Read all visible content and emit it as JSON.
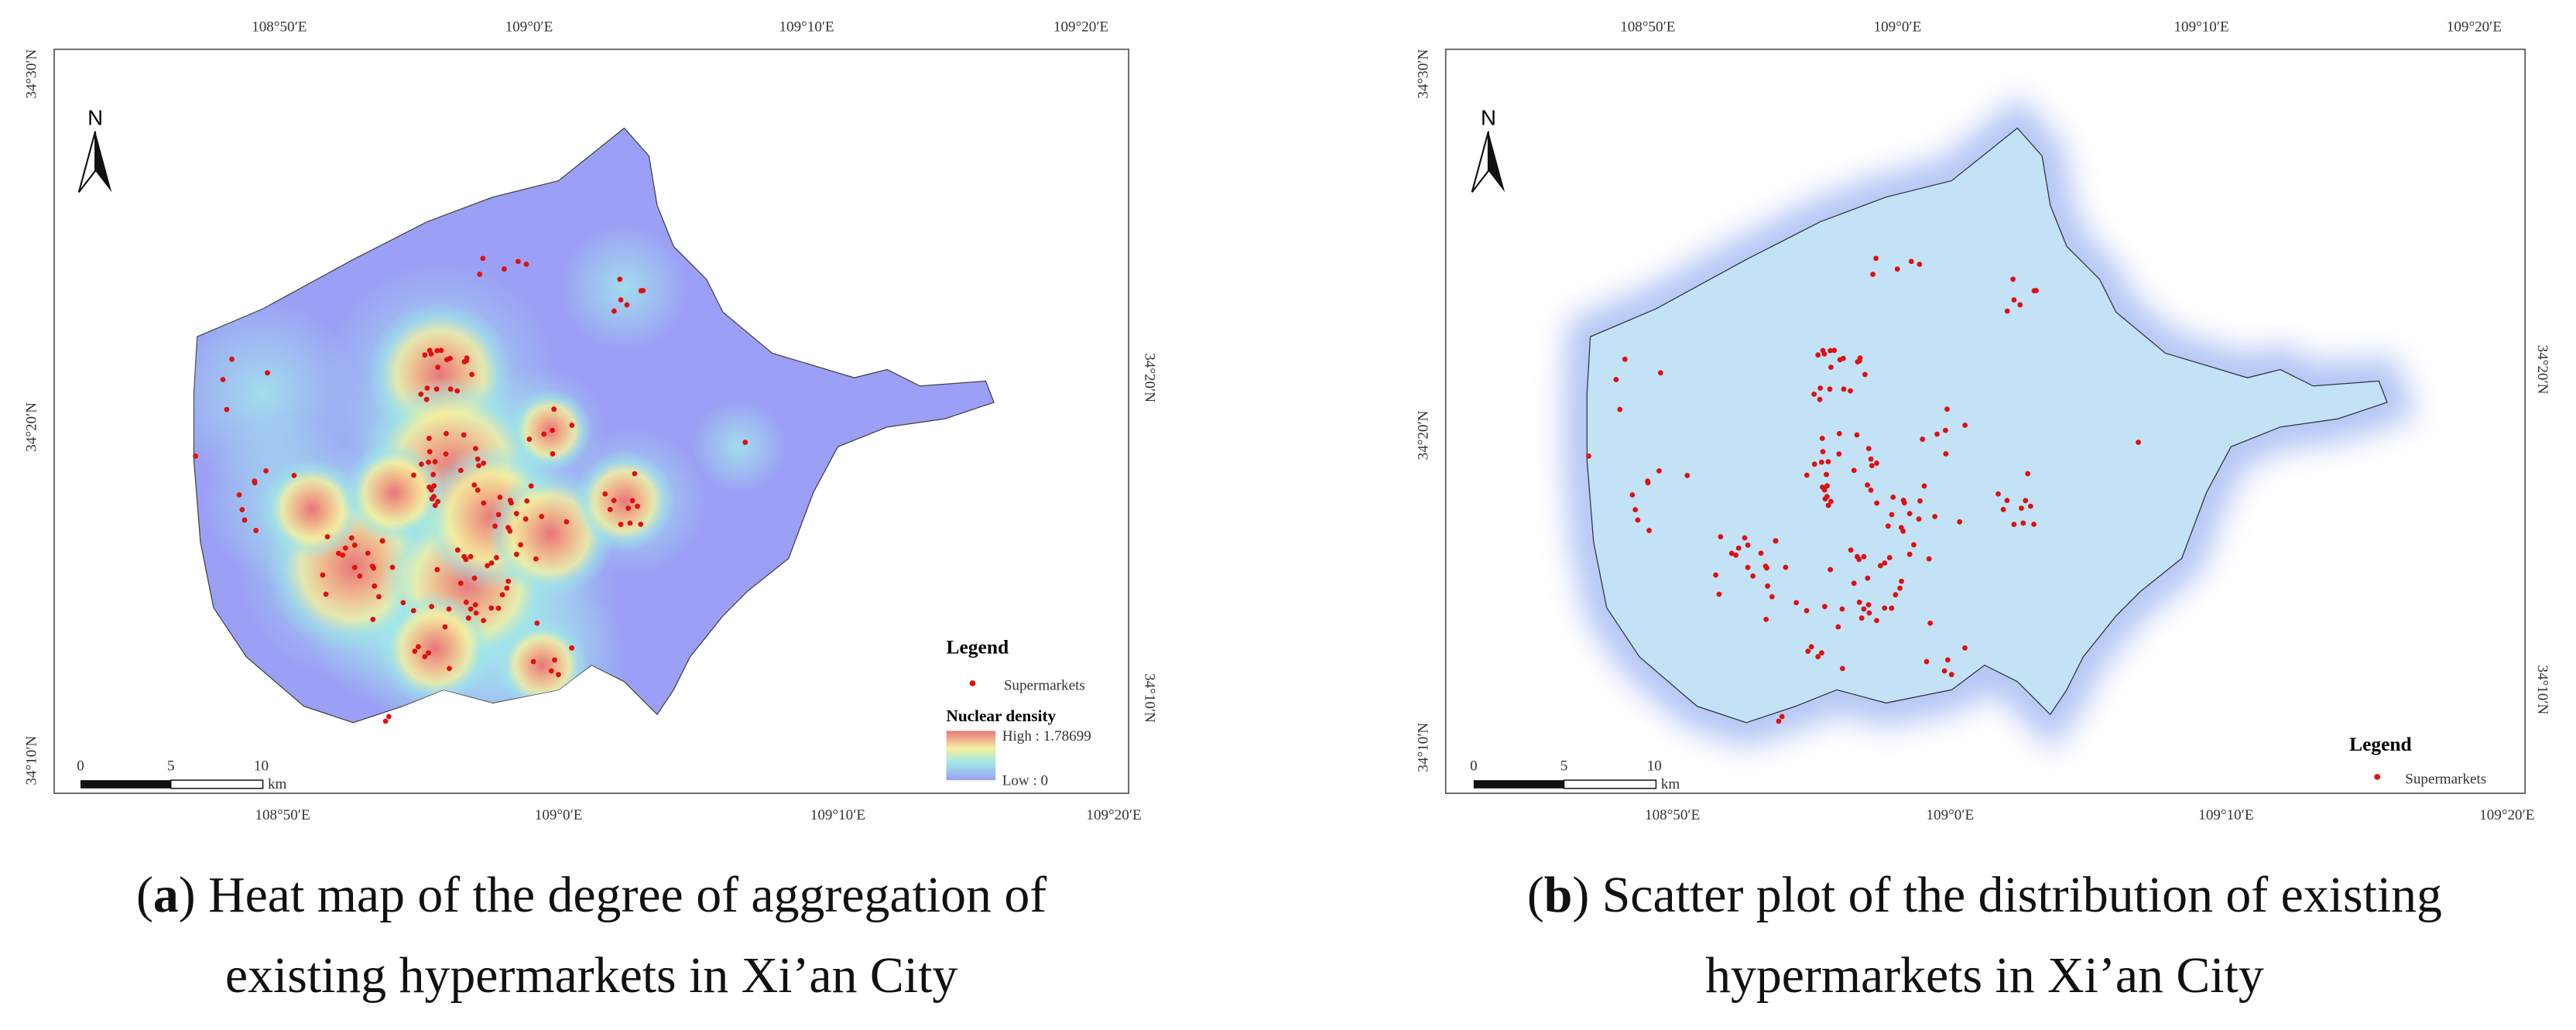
{
  "panels": [
    {
      "top_labels": [
        "108°50′E",
        "109°0′E",
        "109°10′E",
        "109°20′E"
      ],
      "bottom_labels": [
        "108°50′E",
        "109°0′E",
        "109°10′E",
        "109°20′E"
      ],
      "left_labels": [
        "34°30′N",
        "34°20′N",
        "34°10′N"
      ],
      "right_labels": [
        "34°20′N",
        "34°10′N"
      ],
      "north": "N",
      "scale": {
        "ticks": [
          "0",
          "5",
          "10"
        ],
        "unit": "km"
      },
      "legend": {
        "title": "Legend",
        "item": "Supermarkets",
        "density_title": "Nuclear density",
        "high": "High : 1.78699",
        "low": "Low : 0"
      },
      "caption": {
        "open": "(",
        "letter": "a",
        "line1": ") Heat map of the degree of aggregation of",
        "line2": "existing hypermarkets in Xi’an City"
      }
    },
    {
      "top_labels": [
        "108°50′E",
        "109°0′E",
        "109°10′E",
        "109°20′E"
      ],
      "bottom_labels": [
        "108°50′E",
        "109°0′E",
        "109°10′E",
        "109°20′E"
      ],
      "left_labels": [
        "34°30′N",
        "34°20′N",
        "34°10′N"
      ],
      "right_labels": [
        "34°20′N",
        "34°10′N"
      ],
      "north": "N",
      "scale": {
        "ticks": [
          "0",
          "5",
          "10"
        ],
        "unit": "km"
      },
      "legend": {
        "title": "Legend",
        "item": "Supermarkets"
      },
      "caption": {
        "open": "(",
        "letter": "b",
        "line1": ") Scatter plot of the distribution of existing",
        "line2": "hypermarkets in Xi’an City"
      }
    }
  ]
}
